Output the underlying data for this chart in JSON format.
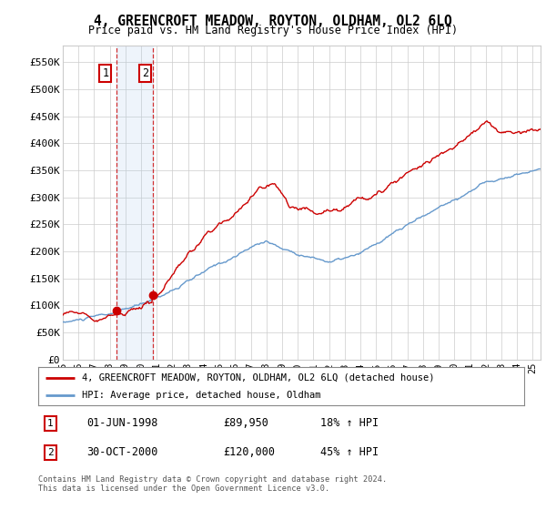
{
  "title": "4, GREENCROFT MEADOW, ROYTON, OLDHAM, OL2 6LQ",
  "subtitle": "Price paid vs. HM Land Registry's House Price Index (HPI)",
  "property_label": "4, GREENCROFT MEADOW, ROYTON, OLDHAM, OL2 6LQ (detached house)",
  "hpi_label": "HPI: Average price, detached house, Oldham",
  "sale1_date": "01-JUN-1998",
  "sale1_price": "£89,950",
  "sale1_hpi": "18% ↑ HPI",
  "sale2_date": "30-OCT-2000",
  "sale2_price": "£120,000",
  "sale2_hpi": "45% ↑ HPI",
  "footer": "Contains HM Land Registry data © Crown copyright and database right 2024.\nThis data is licensed under the Open Government Licence v3.0.",
  "ylim": [
    0,
    580000
  ],
  "yticks": [
    0,
    50000,
    100000,
    150000,
    200000,
    250000,
    300000,
    350000,
    400000,
    450000,
    500000,
    550000
  ],
  "xlim_start": 1995.0,
  "xlim_end": 2025.5,
  "property_color": "#cc0000",
  "hpi_color": "#6699cc",
  "shade_color": "#ddeeff",
  "marker_box_color": "#cc0000",
  "grid_color": "#cccccc",
  "bg_color": "#ffffff"
}
